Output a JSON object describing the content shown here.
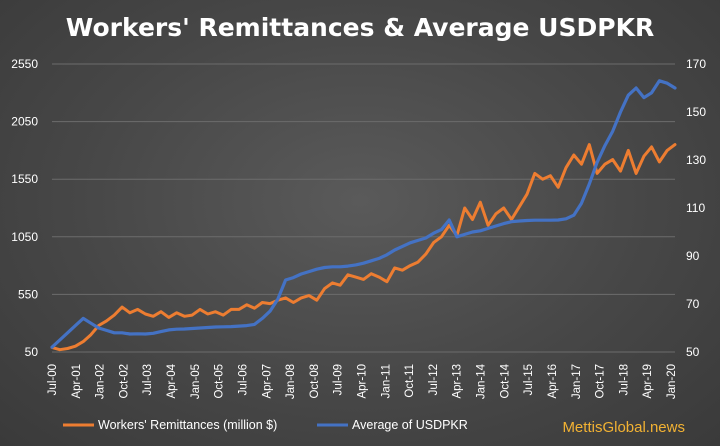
{
  "chart_data": {
    "type": "line",
    "title": "Workers' Remittances & Average USDPKR",
    "brand": "MettisGlobal.news",
    "x_ticks": [
      "Jul-00",
      "Apr-01",
      "Jan-02",
      "Oct-02",
      "Jul-03",
      "Apr-04",
      "Jan-05",
      "Oct-05",
      "Jul-06",
      "Apr-07",
      "Jan-08",
      "Oct-08",
      "Jul-09",
      "Apr-10",
      "Jan-11",
      "Oct-11",
      "Jul-12",
      "Apr-13",
      "Jan-14",
      "Oct-14",
      "Jul-15",
      "Apr-16",
      "Jan-17",
      "Oct-17",
      "Jul-18",
      "Apr-19",
      "Jan-20"
    ],
    "y_left": {
      "min": 50,
      "max": 2550,
      "ticks": [
        "50",
        "550",
        "1050",
        "1550",
        "2050",
        "2550"
      ]
    },
    "y_right": {
      "min": 50,
      "max": 170,
      "ticks": [
        "50",
        "70",
        "90",
        "110",
        "130",
        "150",
        "170"
      ]
    },
    "x_range": [
      0,
      240
    ],
    "series": [
      {
        "name": "Workers' Remittances (million $)",
        "axis": "left",
        "color": "#ed7d31",
        "points": [
          [
            0,
            90
          ],
          [
            3,
            70
          ],
          [
            6,
            80
          ],
          [
            9,
            100
          ],
          [
            12,
            140
          ],
          [
            15,
            200
          ],
          [
            18,
            280
          ],
          [
            21,
            320
          ],
          [
            24,
            370
          ],
          [
            27,
            440
          ],
          [
            30,
            390
          ],
          [
            33,
            420
          ],
          [
            36,
            380
          ],
          [
            39,
            360
          ],
          [
            42,
            400
          ],
          [
            45,
            350
          ],
          [
            48,
            390
          ],
          [
            51,
            360
          ],
          [
            54,
            370
          ],
          [
            57,
            420
          ],
          [
            60,
            380
          ],
          [
            63,
            400
          ],
          [
            66,
            370
          ],
          [
            69,
            420
          ],
          [
            72,
            420
          ],
          [
            75,
            460
          ],
          [
            78,
            430
          ],
          [
            81,
            480
          ],
          [
            84,
            470
          ],
          [
            87,
            500
          ],
          [
            90,
            520
          ],
          [
            93,
            480
          ],
          [
            96,
            520
          ],
          [
            99,
            540
          ],
          [
            102,
            500
          ],
          [
            105,
            600
          ],
          [
            108,
            650
          ],
          [
            111,
            630
          ],
          [
            114,
            720
          ],
          [
            117,
            700
          ],
          [
            120,
            680
          ],
          [
            123,
            730
          ],
          [
            126,
            700
          ],
          [
            129,
            660
          ],
          [
            132,
            780
          ],
          [
            135,
            760
          ],
          [
            138,
            800
          ],
          [
            141,
            830
          ],
          [
            144,
            900
          ],
          [
            147,
            1000
          ],
          [
            150,
            1050
          ],
          [
            153,
            1150
          ],
          [
            156,
            1060
          ],
          [
            159,
            1300
          ],
          [
            162,
            1200
          ],
          [
            165,
            1350
          ],
          [
            168,
            1150
          ],
          [
            171,
            1250
          ],
          [
            174,
            1300
          ],
          [
            177,
            1200
          ],
          [
            180,
            1310
          ],
          [
            183,
            1420
          ],
          [
            186,
            1600
          ],
          [
            189,
            1550
          ],
          [
            192,
            1580
          ],
          [
            195,
            1480
          ],
          [
            198,
            1650
          ],
          [
            201,
            1760
          ],
          [
            204,
            1680
          ],
          [
            207,
            1850
          ],
          [
            210,
            1600
          ],
          [
            213,
            1680
          ],
          [
            216,
            1720
          ],
          [
            219,
            1620
          ],
          [
            222,
            1800
          ],
          [
            225,
            1600
          ],
          [
            228,
            1750
          ],
          [
            231,
            1830
          ],
          [
            234,
            1700
          ],
          [
            237,
            1800
          ],
          [
            240,
            1850
          ]
        ]
      },
      {
        "name": "Average of USDPKR",
        "axis": "right",
        "color": "#4472c4",
        "points": [
          [
            0,
            52
          ],
          [
            3,
            55
          ],
          [
            6,
            58
          ],
          [
            9,
            61
          ],
          [
            12,
            64
          ],
          [
            15,
            62
          ],
          [
            18,
            60
          ],
          [
            21,
            59
          ],
          [
            24,
            58
          ],
          [
            27,
            58
          ],
          [
            30,
            57.5
          ],
          [
            33,
            57.6
          ],
          [
            36,
            57.5
          ],
          [
            39,
            57.8
          ],
          [
            42,
            58.5
          ],
          [
            45,
            59.2
          ],
          [
            48,
            59.5
          ],
          [
            51,
            59.6
          ],
          [
            54,
            59.8
          ],
          [
            57,
            60
          ],
          [
            60,
            60.2
          ],
          [
            63,
            60.4
          ],
          [
            66,
            60.5
          ],
          [
            69,
            60.6
          ],
          [
            72,
            60.8
          ],
          [
            75,
            61
          ],
          [
            78,
            61.5
          ],
          [
            81,
            64
          ],
          [
            84,
            67
          ],
          [
            87,
            72
          ],
          [
            90,
            80
          ],
          [
            93,
            81
          ],
          [
            96,
            82.5
          ],
          [
            99,
            83.5
          ],
          [
            102,
            84.5
          ],
          [
            105,
            85.2
          ],
          [
            108,
            85.5
          ],
          [
            111,
            85.5
          ],
          [
            114,
            85.8
          ],
          [
            117,
            86.3
          ],
          [
            120,
            87
          ],
          [
            123,
            88
          ],
          [
            126,
            89
          ],
          [
            129,
            90.5
          ],
          [
            132,
            92.5
          ],
          [
            135,
            94
          ],
          [
            138,
            95.5
          ],
          [
            141,
            96.5
          ],
          [
            144,
            97.5
          ],
          [
            147,
            99.5
          ],
          [
            150,
            101
          ],
          [
            153,
            105
          ],
          [
            156,
            98
          ],
          [
            159,
            99
          ],
          [
            162,
            100
          ],
          [
            165,
            100.5
          ],
          [
            168,
            101.5
          ],
          [
            171,
            102.5
          ],
          [
            174,
            103.5
          ],
          [
            177,
            104.3
          ],
          [
            180,
            104.6
          ],
          [
            183,
            104.8
          ],
          [
            186,
            104.9
          ],
          [
            189,
            104.9
          ],
          [
            192,
            104.9
          ],
          [
            195,
            105
          ],
          [
            198,
            105.5
          ],
          [
            201,
            107
          ],
          [
            204,
            112
          ],
          [
            207,
            120
          ],
          [
            210,
            129
          ],
          [
            213,
            136
          ],
          [
            216,
            142
          ],
          [
            219,
            150
          ],
          [
            222,
            157
          ],
          [
            225,
            160
          ],
          [
            228,
            156
          ],
          [
            231,
            158
          ],
          [
            234,
            163
          ],
          [
            237,
            162
          ],
          [
            240,
            160
          ]
        ]
      }
    ]
  }
}
